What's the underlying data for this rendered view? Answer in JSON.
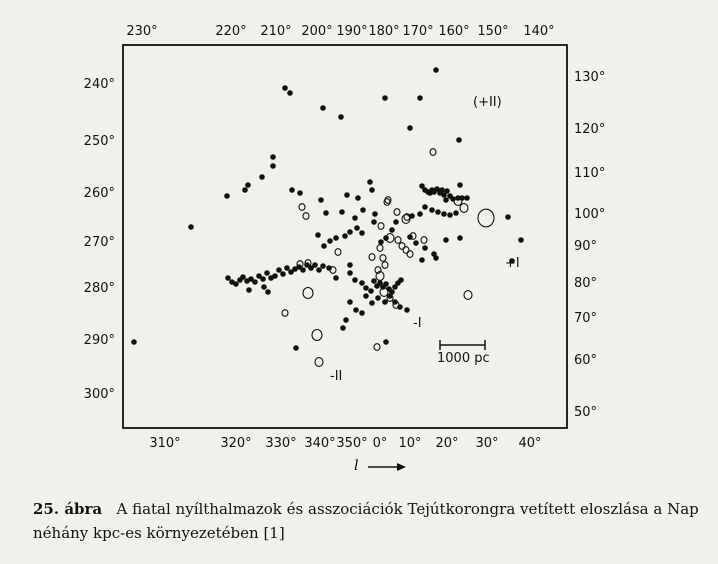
{
  "axes": {
    "top_ticks": [
      "230°",
      "220°",
      "210°",
      "200°",
      "190°",
      "180°",
      "170°",
      "160°",
      "150°",
      "140°"
    ],
    "bottom_ticks": [
      "310°",
      "320°",
      "330°",
      "340°",
      "350°",
      "0°",
      "10°",
      "20°",
      "30°",
      "40°"
    ],
    "left_ticks": [
      "240°",
      "250°",
      "260°",
      "270°",
      "280°",
      "290°",
      "300°"
    ],
    "right_ticks": [
      "130°",
      "120°",
      "110°",
      "100°",
      "90°",
      "80°",
      "70°",
      "60°",
      "50°"
    ],
    "bottom_label": "l"
  },
  "annotations": {
    "plus_two": "(+II)",
    "plus_one": "+I",
    "minus_one": "-I",
    "minus_two": "-II",
    "scale": "1000 pc"
  },
  "caption": {
    "number": "25. ábra",
    "text": "A fiatal nyílthalmazok és asszociációk Tejútkorongra vetített eloszlása a Nap néhány kpc-es környezetében [1]"
  },
  "colors": {
    "ink": "#111111",
    "paper": "#f2f0ea"
  }
}
